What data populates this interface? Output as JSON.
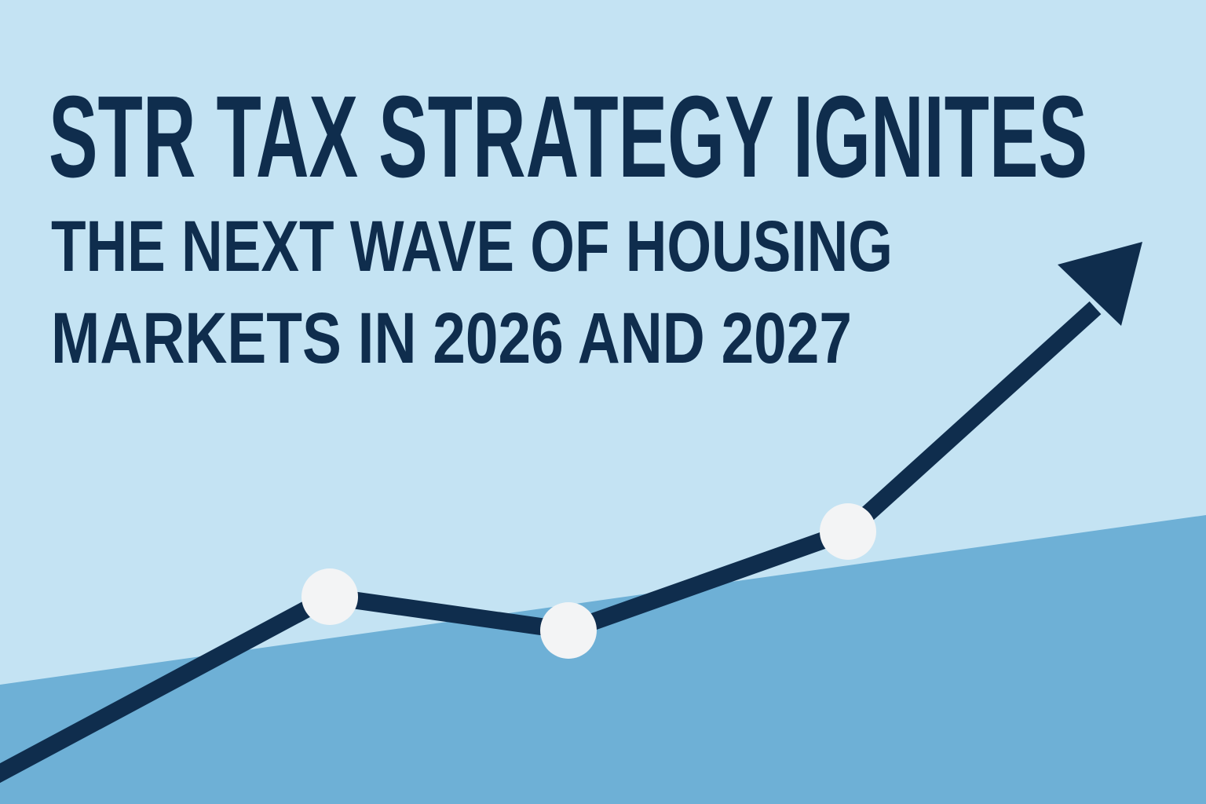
{
  "headline": {
    "lines": [
      "STR TAX STRATEGY IGNITES",
      "THE NEXT WAVE OF HOUSING",
      "MARKETS IN 2026 AND 2027"
    ]
  }
}
